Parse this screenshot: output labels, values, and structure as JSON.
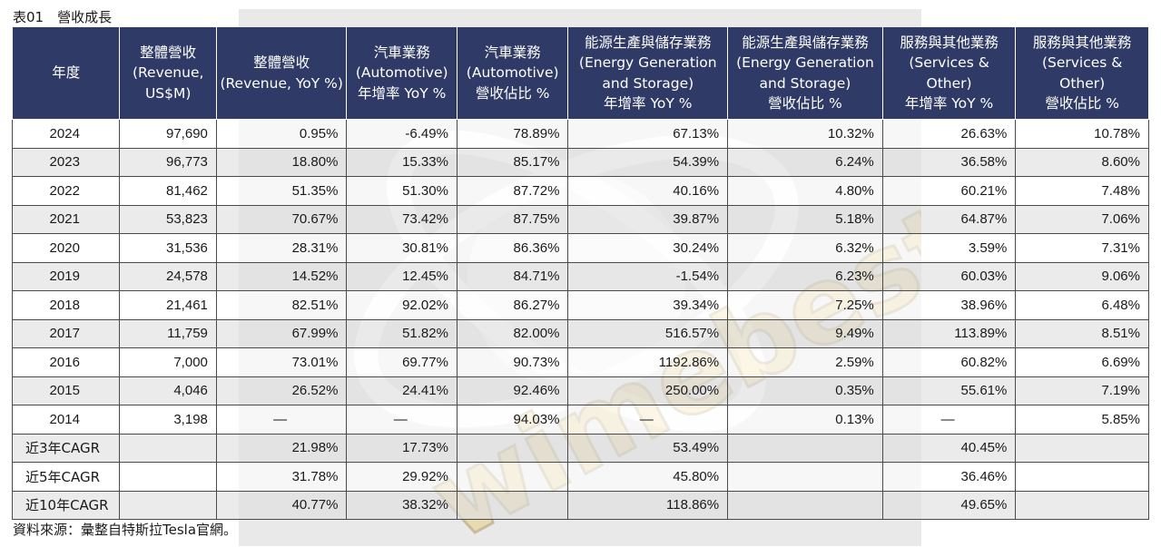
{
  "caption": "表01　營收成長",
  "headers": [
    "年度",
    "整體營收\n(Revenue,\nUS$M)",
    "整體營收\n(Revenue, YoY %)",
    "汽車業務\n(Automotive)\n年增率 YoY %",
    "汽車業務\n(Automotive)\n營收佔比 %",
    "能源生產與儲存業務\n(Energy Generation\nand Storage)\n年增率 YoY %",
    "能源生產與儲存業務\n(Energy Generation\nand Storage)\n營收佔比 %",
    "服務與其他業務\n(Services &\nOther)\n年增率 YoY %",
    "服務與其他業務\n(Services &\nOther)\n營收佔比 %"
  ],
  "rows": [
    {
      "year": "2024",
      "revenue": "97,690",
      "rev_yoy": "0.95%",
      "auto_yoy": "-6.49%",
      "auto_share": "78.89%",
      "energy_yoy": "67.13%",
      "energy_share": "10.32%",
      "services_yoy": "26.63%",
      "services_share": "10.78%"
    },
    {
      "year": "2023",
      "revenue": "96,773",
      "rev_yoy": "18.80%",
      "auto_yoy": "15.33%",
      "auto_share": "85.17%",
      "energy_yoy": "54.39%",
      "energy_share": "6.24%",
      "services_yoy": "36.58%",
      "services_share": "8.60%"
    },
    {
      "year": "2022",
      "revenue": "81,462",
      "rev_yoy": "51.35%",
      "auto_yoy": "51.30%",
      "auto_share": "87.72%",
      "energy_yoy": "40.16%",
      "energy_share": "4.80%",
      "services_yoy": "60.21%",
      "services_share": "7.48%"
    },
    {
      "year": "2021",
      "revenue": "53,823",
      "rev_yoy": "70.67%",
      "auto_yoy": "73.42%",
      "auto_share": "87.75%",
      "energy_yoy": "39.87%",
      "energy_share": "5.18%",
      "services_yoy": "64.87%",
      "services_share": "7.06%"
    },
    {
      "year": "2020",
      "revenue": "31,536",
      "rev_yoy": "28.31%",
      "auto_yoy": "30.81%",
      "auto_share": "86.36%",
      "energy_yoy": "30.24%",
      "energy_share": "6.32%",
      "services_yoy": "3.59%",
      "services_share": "7.31%"
    },
    {
      "year": "2019",
      "revenue": "24,578",
      "rev_yoy": "14.52%",
      "auto_yoy": "12.45%",
      "auto_share": "84.71%",
      "energy_yoy": "-1.54%",
      "energy_share": "6.23%",
      "services_yoy": "60.03%",
      "services_share": "9.06%"
    },
    {
      "year": "2018",
      "revenue": "21,461",
      "rev_yoy": "82.51%",
      "auto_yoy": "92.02%",
      "auto_share": "86.27%",
      "energy_yoy": "39.34%",
      "energy_share": "7.25%",
      "services_yoy": "38.96%",
      "services_share": "6.48%"
    },
    {
      "year": "2017",
      "revenue": "11,759",
      "rev_yoy": "67.99%",
      "auto_yoy": "51.82%",
      "auto_share": "82.00%",
      "energy_yoy": "516.57%",
      "energy_share": "9.49%",
      "services_yoy": "113.89%",
      "services_share": "8.51%"
    },
    {
      "year": "2016",
      "revenue": "7,000",
      "rev_yoy": "73.01%",
      "auto_yoy": "69.77%",
      "auto_share": "90.73%",
      "energy_yoy": "1192.86%",
      "energy_share": "2.59%",
      "services_yoy": "60.82%",
      "services_share": "6.69%"
    },
    {
      "year": "2015",
      "revenue": "4,046",
      "rev_yoy": "26.52%",
      "auto_yoy": "24.41%",
      "auto_share": "92.46%",
      "energy_yoy": "250.00%",
      "energy_share": "0.35%",
      "services_yoy": "55.61%",
      "services_share": "7.19%"
    },
    {
      "year": "2014",
      "revenue": "3,198",
      "rev_yoy": "—",
      "auto_yoy": "—",
      "auto_share": "94.03%",
      "energy_yoy": "—",
      "energy_share": "0.13%",
      "services_yoy": "—",
      "services_share": "5.85%"
    }
  ],
  "cagr_rows": [
    {
      "label": "近3年CAGR",
      "rev_yoy": "21.98%",
      "auto_yoy": "17.73%",
      "energy_yoy": "53.49%",
      "services_yoy": "40.45%"
    },
    {
      "label": "近5年CAGR",
      "rev_yoy": "31.78%",
      "auto_yoy": "29.92%",
      "energy_yoy": "45.80%",
      "services_yoy": "36.46%"
    },
    {
      "label": "近10年CAGR",
      "rev_yoy": "40.77%",
      "auto_yoy": "38.32%",
      "energy_yoy": "118.86%",
      "services_yoy": "49.65%"
    }
  ],
  "source": "資料來源：彙整自特斯拉Tesla官網。",
  "watermark": "wimebest",
  "colors": {
    "header_bg": "#2f3b66",
    "header_text": "#ffffff",
    "watermark": "#e8c34a"
  }
}
